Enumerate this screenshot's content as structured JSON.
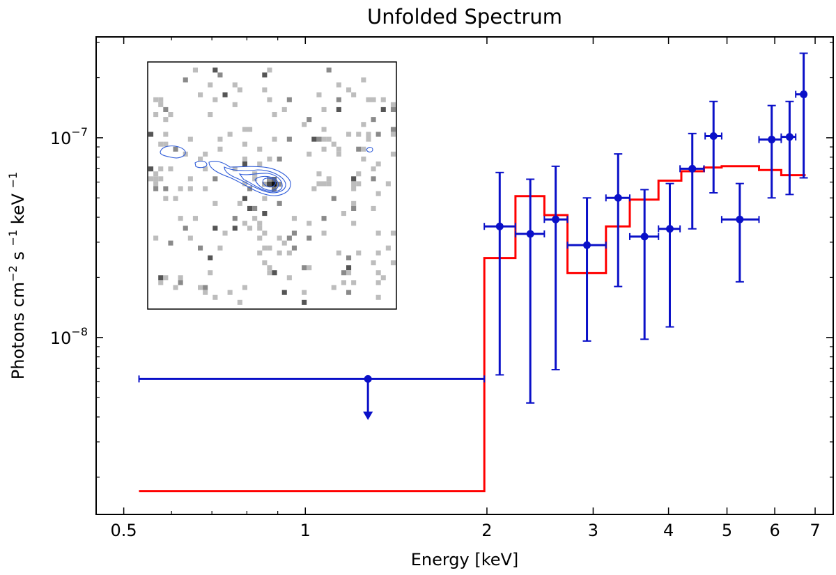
{
  "chart_data": {
    "type": "line",
    "title": "Unfolded Spectrum",
    "xlabel": "Energy [keV]",
    "ylabel": {
      "base": "Photons cm",
      "exp1": "−2",
      "mid": " s ",
      "exp2": "−1",
      "end": " keV ",
      "exp3": "−1"
    },
    "x_scale": "log",
    "y_scale": "log",
    "xlim": [
      0.45,
      7.5
    ],
    "ylim": [
      1.3e-09,
      3.2e-07
    ],
    "x_tick_labels": [
      {
        "value": 0.5,
        "label": "0.5"
      },
      {
        "value": 1,
        "label": "1"
      },
      {
        "value": 2,
        "label": "2"
      },
      {
        "value": 3,
        "label": "3"
      },
      {
        "value": 4,
        "label": "4"
      },
      {
        "value": 5,
        "label": "5"
      },
      {
        "value": 6,
        "label": "6"
      },
      {
        "value": 7,
        "label": "7"
      }
    ],
    "y_tick_labels": [
      {
        "value": 1e-08,
        "base": "10",
        "exp": "−8"
      },
      {
        "value": 1e-07,
        "base": "10",
        "exp": "−7"
      }
    ],
    "series": [
      {
        "kind": "errorbar",
        "color": "#0a10c8",
        "points": [
          {
            "x": 1.27,
            "xlo": 0.53,
            "xhi": 1.98,
            "y": 6.2e-09,
            "upper_limit": true
          },
          {
            "x": 2.1,
            "xlo": 1.98,
            "xhi": 2.23,
            "y": 3.6e-08,
            "ylo": 6.5e-09,
            "yhi": 6.7e-08
          },
          {
            "x": 2.36,
            "xlo": 2.23,
            "xhi": 2.49,
            "y": 3.3e-08,
            "ylo": 4.7e-09,
            "yhi": 6.2e-08
          },
          {
            "x": 2.6,
            "xlo": 2.49,
            "xhi": 2.72,
            "y": 3.9e-08,
            "ylo": 6.9e-09,
            "yhi": 7.2e-08
          },
          {
            "x": 2.93,
            "xlo": 2.72,
            "xhi": 3.15,
            "y": 2.9e-08,
            "ylo": 9.6e-09,
            "yhi": 5e-08
          },
          {
            "x": 3.3,
            "xlo": 3.15,
            "xhi": 3.45,
            "y": 5e-08,
            "ylo": 1.8e-08,
            "yhi": 8.3e-08
          },
          {
            "x": 3.65,
            "xlo": 3.45,
            "xhi": 3.85,
            "y": 3.2e-08,
            "ylo": 9.8e-09,
            "yhi": 5.5e-08
          },
          {
            "x": 4.02,
            "xlo": 3.85,
            "xhi": 4.18,
            "y": 3.5e-08,
            "ylo": 1.13e-08,
            "yhi": 5.9e-08
          },
          {
            "x": 4.38,
            "xlo": 4.18,
            "xhi": 4.58,
            "y": 7e-08,
            "ylo": 3.5e-08,
            "yhi": 1.05e-07
          },
          {
            "x": 4.75,
            "xlo": 4.6,
            "xhi": 4.9,
            "y": 1.02e-07,
            "ylo": 5.3e-08,
            "yhi": 1.52e-07
          },
          {
            "x": 5.25,
            "xlo": 4.9,
            "xhi": 5.65,
            "y": 3.9e-08,
            "ylo": 1.9e-08,
            "yhi": 5.9e-08
          },
          {
            "x": 5.93,
            "xlo": 5.65,
            "xhi": 6.15,
            "y": 9.8e-08,
            "ylo": 5e-08,
            "yhi": 1.45e-07
          },
          {
            "x": 6.35,
            "xlo": 6.15,
            "xhi": 6.5,
            "y": 1.01e-07,
            "ylo": 5.2e-08,
            "yhi": 1.52e-07
          },
          {
            "x": 6.7,
            "xlo": 6.5,
            "xhi": 6.75,
            "y": 1.65e-07,
            "ylo": 6.3e-08,
            "yhi": 2.65e-07
          }
        ]
      },
      {
        "kind": "step",
        "color": "#ff0000",
        "edges": [
          0.53,
          1.98,
          2.23,
          2.49,
          2.72,
          3.15,
          3.45,
          3.85,
          4.2,
          4.58,
          4.9,
          5.65,
          6.15,
          6.75
        ],
        "values": [
          1.7e-09,
          2.5e-08,
          5.1e-08,
          4.1e-08,
          2.1e-08,
          3.6e-08,
          4.9e-08,
          6.1e-08,
          6.8e-08,
          7.1e-08,
          7.2e-08,
          6.9e-08,
          6.5e-08
        ]
      }
    ],
    "inset": {
      "type": "image",
      "description_colors": {
        "background": "#ffffff",
        "pixels": "#bdbdbd",
        "contours": "#2e5bd8"
      }
    }
  }
}
